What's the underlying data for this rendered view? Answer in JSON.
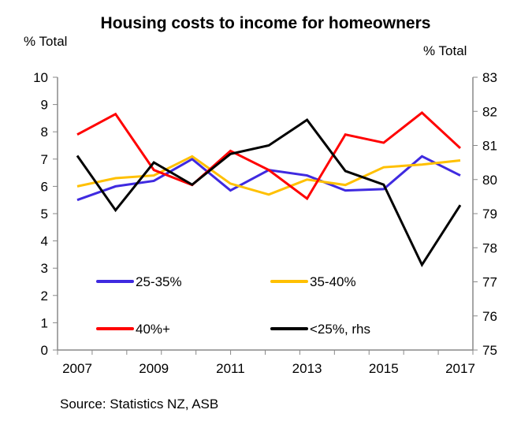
{
  "chart_data": {
    "type": "line",
    "title": "Housing costs to income for homeowners",
    "ylabel_left": "% Total",
    "ylabel_right": "% Total",
    "source": "Source: Statistics NZ, ASB",
    "x": [
      2007,
      2008,
      2009,
      2010,
      2011,
      2012,
      2013,
      2014,
      2015,
      2016,
      2017
    ],
    "x_tick_labels": [
      "2007",
      "2009",
      "2011",
      "2013",
      "2015",
      "2017"
    ],
    "ylim_left": [
      0,
      10
    ],
    "ylim_right": [
      75,
      83
    ],
    "y_ticks_left": [
      "0",
      "1",
      "2",
      "3",
      "4",
      "5",
      "6",
      "7",
      "8",
      "9",
      "10"
    ],
    "y_ticks_right": [
      "75",
      "76",
      "77",
      "78",
      "79",
      "80",
      "81",
      "82",
      "83"
    ],
    "grid": false,
    "series": [
      {
        "name": "25-35%",
        "axis": "left",
        "color": "#3f2ae0",
        "values": [
          5.5,
          6.0,
          6.2,
          7.0,
          5.85,
          6.6,
          6.4,
          5.85,
          5.9,
          7.1,
          6.4
        ]
      },
      {
        "name": "35-40%",
        "axis": "left",
        "color": "#ffc000",
        "values": [
          6.0,
          6.3,
          6.4,
          7.1,
          6.1,
          5.7,
          6.25,
          6.05,
          6.7,
          6.8,
          6.95
        ]
      },
      {
        "name": "40%+",
        "axis": "left",
        "color": "#ff0000",
        "values": [
          7.9,
          8.65,
          6.6,
          6.05,
          7.3,
          6.6,
          5.55,
          7.9,
          7.6,
          8.7,
          7.4
        ]
      },
      {
        "name": "<25%, rhs",
        "axis": "right",
        "color": "#000000",
        "values": [
          80.7,
          79.1,
          80.5,
          79.85,
          80.75,
          81.0,
          81.75,
          80.25,
          79.85,
          77.5,
          79.25
        ]
      }
    ]
  }
}
